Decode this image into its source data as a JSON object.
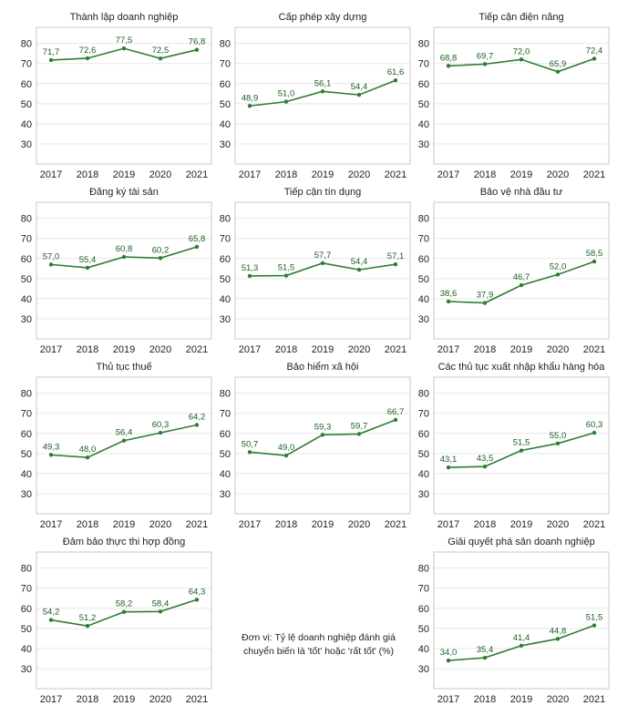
{
  "unit_note": "Đơn vị: Tỷ lệ doanh nghiệp đánh giá chuyển biến là 'tốt' hoặc 'rất tốt' (%)",
  "colors": {
    "line": "#2e7d32",
    "label": "#1b5e20",
    "frame": "#c8c8c8",
    "grid": "#e8e8e8",
    "text": "#222222"
  },
  "chart_data": [
    {
      "type": "line",
      "title": "Thành lập doanh nghiệp",
      "categories": [
        "2017",
        "2018",
        "2019",
        "2020",
        "2021"
      ],
      "values": [
        71.7,
        72.6,
        77.5,
        72.5,
        76.8
      ],
      "value_labels": [
        "71,7",
        "72,6",
        "77,5",
        "72,5",
        "76,8"
      ],
      "yticks": [
        30,
        40,
        50,
        60,
        70,
        80
      ],
      "ylim": [
        20,
        88
      ]
    },
    {
      "type": "line",
      "title": "Cấp phép xây dựng",
      "categories": [
        "2017",
        "2018",
        "2019",
        "2020",
        "2021"
      ],
      "values": [
        48.9,
        51.0,
        56.1,
        54.4,
        61.6
      ],
      "value_labels": [
        "48,9",
        "51,0",
        "56,1",
        "54,4",
        "61,6"
      ],
      "yticks": [
        30,
        40,
        50,
        60,
        70,
        80
      ],
      "ylim": [
        20,
        88
      ]
    },
    {
      "type": "line",
      "title": "Tiếp cận điện năng",
      "categories": [
        "2017",
        "2018",
        "2019",
        "2020",
        "2021"
      ],
      "values": [
        68.8,
        69.7,
        72.0,
        65.9,
        72.4
      ],
      "value_labels": [
        "68,8",
        "69,7",
        "72,0",
        "65,9",
        "72,4"
      ],
      "yticks": [
        30,
        40,
        50,
        60,
        70,
        80
      ],
      "ylim": [
        20,
        88
      ]
    },
    {
      "type": "line",
      "title": "Đăng ký tài sản",
      "categories": [
        "2017",
        "2018",
        "2019",
        "2020",
        "2021"
      ],
      "values": [
        57.0,
        55.4,
        60.8,
        60.2,
        65.8
      ],
      "value_labels": [
        "57,0",
        "55,4",
        "60,8",
        "60,2",
        "65,8"
      ],
      "yticks": [
        30,
        40,
        50,
        60,
        70,
        80
      ],
      "ylim": [
        20,
        88
      ]
    },
    {
      "type": "line",
      "title": "Tiếp cận tín dụng",
      "categories": [
        "2017",
        "2018",
        "2019",
        "2020",
        "2021"
      ],
      "values": [
        51.3,
        51.5,
        57.7,
        54.4,
        57.1
      ],
      "value_labels": [
        "51,3",
        "51,5",
        "57,7",
        "54,4",
        "57,1"
      ],
      "yticks": [
        30,
        40,
        50,
        60,
        70,
        80
      ],
      "ylim": [
        20,
        88
      ]
    },
    {
      "type": "line",
      "title": "Bảo vệ nhà đầu tư",
      "categories": [
        "2017",
        "2018",
        "2019",
        "2020",
        "2021"
      ],
      "values": [
        38.6,
        37.9,
        46.7,
        52.0,
        58.5
      ],
      "value_labels": [
        "38,6",
        "37,9",
        "46,7",
        "52,0",
        "58,5"
      ],
      "yticks": [
        30,
        40,
        50,
        60,
        70,
        80
      ],
      "ylim": [
        20,
        88
      ]
    },
    {
      "type": "line",
      "title": "Thủ tục thuế",
      "categories": [
        "2017",
        "2018",
        "2019",
        "2020",
        "2021"
      ],
      "values": [
        49.3,
        48.0,
        56.4,
        60.3,
        64.2
      ],
      "value_labels": [
        "49,3",
        "48,0",
        "56,4",
        "60,3",
        "64,2"
      ],
      "yticks": [
        30,
        40,
        50,
        60,
        70,
        80
      ],
      "ylim": [
        20,
        88
      ]
    },
    {
      "type": "line",
      "title": "Bảo hiểm xã hội",
      "categories": [
        "2017",
        "2018",
        "2019",
        "2020",
        "2021"
      ],
      "values": [
        50.7,
        49.0,
        59.3,
        59.7,
        66.7
      ],
      "value_labels": [
        "50,7",
        "49,0",
        "59,3",
        "59,7",
        "66,7"
      ],
      "yticks": [
        30,
        40,
        50,
        60,
        70,
        80
      ],
      "ylim": [
        20,
        88
      ]
    },
    {
      "type": "line",
      "title": "Các thủ tục xuất nhập khẩu hàng hóa",
      "categories": [
        "2017",
        "2018",
        "2019",
        "2020",
        "2021"
      ],
      "values": [
        43.1,
        43.5,
        51.5,
        55.0,
        60.3
      ],
      "value_labels": [
        "43,1",
        "43,5",
        "51,5",
        "55,0",
        "60,3"
      ],
      "yticks": [
        30,
        40,
        50,
        60,
        70,
        80
      ],
      "ylim": [
        20,
        88
      ]
    },
    {
      "type": "line",
      "title": "Đảm bảo thực thi hợp đồng",
      "categories": [
        "2017",
        "2018",
        "2019",
        "2020",
        "2021"
      ],
      "values": [
        54.2,
        51.2,
        58.2,
        58.4,
        64.3
      ],
      "value_labels": [
        "54,2",
        "51,2",
        "58,2",
        "58,4",
        "64,3"
      ],
      "yticks": [
        30,
        40,
        50,
        60,
        70,
        80
      ],
      "ylim": [
        20,
        88
      ]
    },
    {
      "type": "line",
      "title": "Giải quyết phá sản doanh nghiệp",
      "categories": [
        "2017",
        "2018",
        "2019",
        "2020",
        "2021"
      ],
      "values": [
        34.0,
        35.4,
        41.4,
        44.8,
        51.5
      ],
      "value_labels": [
        "34,0",
        "35,4",
        "41,4",
        "44,8",
        "51,5"
      ],
      "yticks": [
        30,
        40,
        50,
        60,
        70,
        80
      ],
      "ylim": [
        20,
        88
      ]
    }
  ]
}
